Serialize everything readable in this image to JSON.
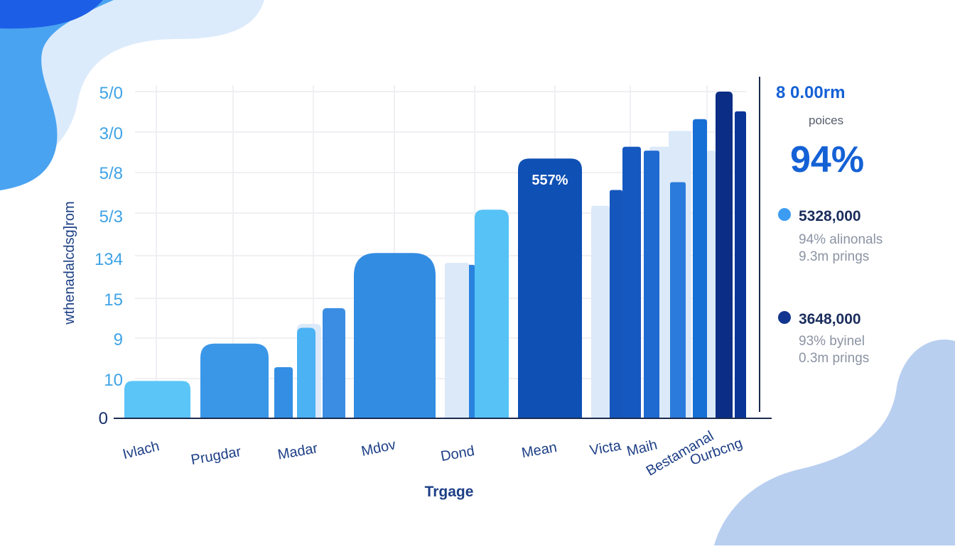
{
  "colors": {
    "blob_dark": "#1c5fe6",
    "blob_mid": "#4aa3f0",
    "blob_light": "#dcebfb",
    "blob_bottom": "#b8cff0",
    "grid": "#ececf1",
    "axis": "#1c2b4e",
    "label_blue": "#3fa3e6",
    "axis_text": "#1d3f86",
    "panel_big": "#1461d6",
    "dot_light": "#3c9cf1",
    "dot_dark": "#12368f"
  },
  "chart_data": {
    "type": "bar",
    "ylabel": "wthenadalcdsg]rom",
    "xlabel": "Trgage",
    "y_tick_labels": [
      "0",
      "10",
      "9",
      "15",
      "134",
      "5/3",
      "5/8",
      "3/0",
      "5/0"
    ],
    "categories": [
      "Ivlach",
      "Prugdar",
      "Madar",
      "Mdov",
      "Dond",
      "Mean",
      "Victa",
      "Maih",
      "Bestamanal",
      "Ourbcng"
    ],
    "bars": [
      {
        "category": "Ivlach",
        "value": 0.95,
        "color": "#5bc5f8"
      },
      {
        "category": "Prugdar",
        "value": 1.9,
        "color": "#3a97e8"
      },
      {
        "category": "Madar",
        "value": 1.3,
        "color": "#338ee4"
      },
      {
        "category": "Madar",
        "value": 2.4,
        "color": "#dbe9f8"
      },
      {
        "category": "Madar",
        "value": 2.3,
        "color": "#4bb2f3"
      },
      {
        "category": "Madar",
        "value": 2.8,
        "color": "#3a8de3"
      },
      {
        "category": "Mdov",
        "value": 4.2,
        "color": "#318ce2"
      },
      {
        "category": "Dond",
        "value": 3.9,
        "color": "#2a82de"
      },
      {
        "category": "Dond",
        "value": 3.95,
        "color": "#dbe9f8"
      },
      {
        "category": "Dond",
        "value": 5.3,
        "color": "#56c2f6"
      },
      {
        "category": "Mean",
        "value": 6.6,
        "color": "#0f50b4",
        "label": "557%"
      },
      {
        "category": "Victa",
        "value": 5.8,
        "color": "#1556bd"
      },
      {
        "category": "Victa",
        "value": 5.4,
        "color": "#dbe9f8"
      },
      {
        "category": "Victa",
        "value": 6.9,
        "color": "#1558c0"
      },
      {
        "category": "Maih",
        "value": 6.9,
        "color": "#dbe9f8"
      },
      {
        "category": "Maih",
        "value": 6.8,
        "color": "#1f6ad0"
      },
      {
        "category": "Bestamanal",
        "value": 7.3,
        "color": "#dbe9f8"
      },
      {
        "category": "Bestamanal",
        "value": 6.0,
        "color": "#2a7bdb"
      },
      {
        "category": "Bestamanal",
        "value": 7.6,
        "color": "#166fd5"
      },
      {
        "category": "Ourbcng",
        "value": 6.8,
        "color": "#dbe9f8"
      },
      {
        "category": "Ourbcng",
        "value": 8.3,
        "color": "#0b2d85"
      },
      {
        "category": "Ourbcng",
        "value": 7.8,
        "color": "#0a3597"
      }
    ],
    "grid": true
  },
  "side_panel": {
    "header": "8 0.00rm",
    "caption": "poices",
    "big_value": "94%",
    "entries": [
      {
        "value": "5328,000",
        "line1": "94% alinonals",
        "line2": "9.3m prings",
        "dot_color": "#3c9cf1"
      },
      {
        "value": "3648,000",
        "line1": "93% byinel",
        "line2": "0.3m prings",
        "dot_color": "#12368f"
      }
    ]
  }
}
